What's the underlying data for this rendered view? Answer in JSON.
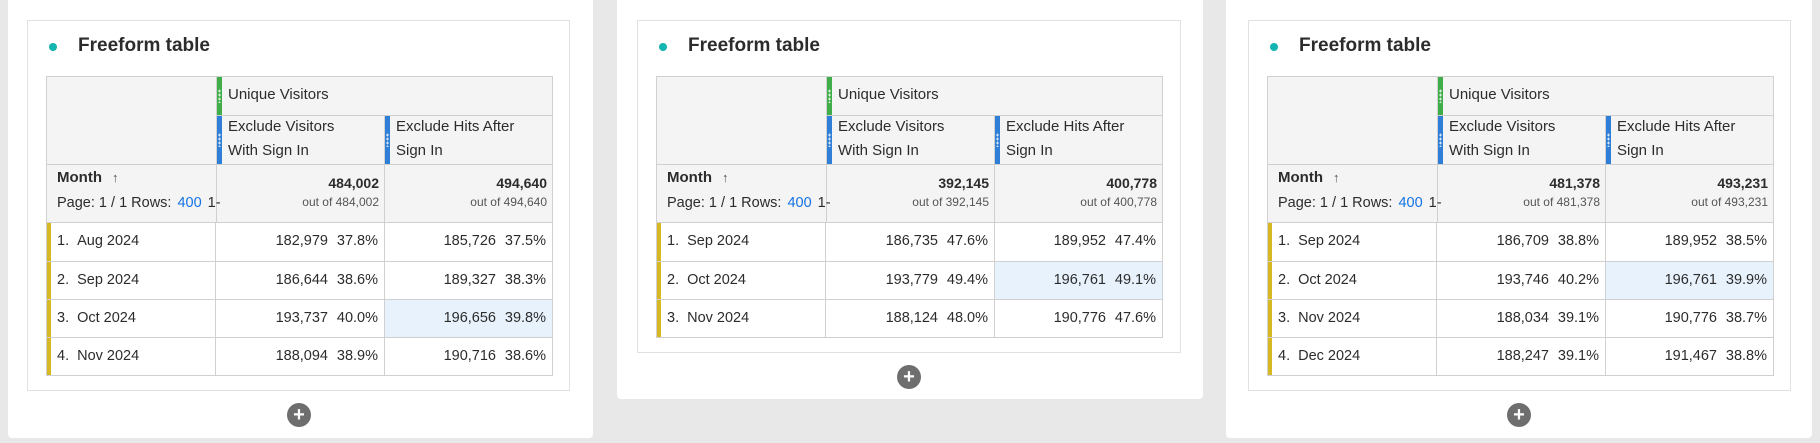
{
  "panels": [
    {
      "title": "Freeform table",
      "top_metric": "Unique Visitors",
      "col1_label_l1": "Exclude Visitors",
      "col1_label_l2": "With Sign In",
      "col2_label_l1": "Exclude Hits After",
      "col2_label_l2": "Sign In",
      "dimension": "Month",
      "page_text": "Page: 1 / 1  Rows:",
      "rows_value": "400",
      "rows_suffix": "1-",
      "col1_total": "484,002",
      "col1_out_of": "out of 484,002",
      "col2_total": "494,640",
      "col2_out_of": "out of 494,640",
      "rows": [
        {
          "num": "1.",
          "label": "Aug 2024",
          "c1v": "182,979",
          "c1p": "37.8%",
          "c2v": "185,726",
          "c2p": "37.5%"
        },
        {
          "num": "2.",
          "label": "Sep 2024",
          "c1v": "186,644",
          "c1p": "38.6%",
          "c2v": "189,327",
          "c2p": "38.3%"
        },
        {
          "num": "3.",
          "label": "Oct 2024",
          "c1v": "193,737",
          "c1p": "40.0%",
          "c2v": "196,656",
          "c2p": "39.8%"
        },
        {
          "num": "4.",
          "label": "Nov 2024",
          "c1v": "188,094",
          "c1p": "38.9%",
          "c2v": "190,716",
          "c2p": "38.6%"
        }
      ]
    },
    {
      "title": "Freeform table",
      "top_metric": "Unique Visitors",
      "col1_label_l1": "Exclude Visitors",
      "col1_label_l2": "With Sign In",
      "col2_label_l1": "Exclude Hits After",
      "col2_label_l2": "Sign In",
      "dimension": "Month",
      "page_text": "Page: 1 / 1  Rows:",
      "rows_value": "400",
      "rows_suffix": "1-",
      "col1_total": "392,145",
      "col1_out_of": "out of 392,145",
      "col2_total": "400,778",
      "col2_out_of": "out of 400,778",
      "rows": [
        {
          "num": "1.",
          "label": "Sep 2024",
          "c1v": "186,735",
          "c1p": "47.6%",
          "c2v": "189,952",
          "c2p": "47.4%"
        },
        {
          "num": "2.",
          "label": "Oct 2024",
          "c1v": "193,779",
          "c1p": "49.4%",
          "c2v": "196,761",
          "c2p": "49.1%"
        },
        {
          "num": "3.",
          "label": "Nov 2024",
          "c1v": "188,124",
          "c1p": "48.0%",
          "c2v": "190,776",
          "c2p": "47.6%"
        }
      ]
    },
    {
      "title": "Freeform table",
      "top_metric": "Unique Visitors",
      "col1_label_l1": "Exclude Visitors",
      "col1_label_l2": "With Sign In",
      "col2_label_l1": "Exclude Hits After",
      "col2_label_l2": "Sign In",
      "dimension": "Month",
      "page_text": "Page: 1 / 1  Rows:",
      "rows_value": "400",
      "rows_suffix": "1-",
      "col1_total": "481,378",
      "col1_out_of": "out of 481,378",
      "col2_total": "493,231",
      "col2_out_of": "out of 493,231",
      "rows": [
        {
          "num": "1.",
          "label": "Sep 2024",
          "c1v": "186,709",
          "c1p": "38.8%",
          "c2v": "189,952",
          "c2p": "38.5%"
        },
        {
          "num": "2.",
          "label": "Oct 2024",
          "c1v": "193,746",
          "c1p": "40.2%",
          "c2v": "196,761",
          "c2p": "39.9%"
        },
        {
          "num": "3.",
          "label": "Nov 2024",
          "c1v": "188,034",
          "c1p": "39.1%",
          "c2v": "190,776",
          "c2p": "38.7%"
        },
        {
          "num": "4.",
          "label": "Dec 2024",
          "c1v": "188,247",
          "c1p": "39.1%",
          "c2v": "191,467",
          "c2p": "38.8%"
        }
      ]
    }
  ],
  "sort_icon": "arrow-up-icon",
  "add_icon": "plus-circle-icon",
  "add_symbol": "+",
  "colors": {
    "accent": "#12b5b0",
    "row_bar": "#d6b825",
    "metric_green": "#3fae49",
    "segment_blue": "#2f7fd8",
    "link": "#1473e6",
    "highlight": "#e8f2fc"
  }
}
